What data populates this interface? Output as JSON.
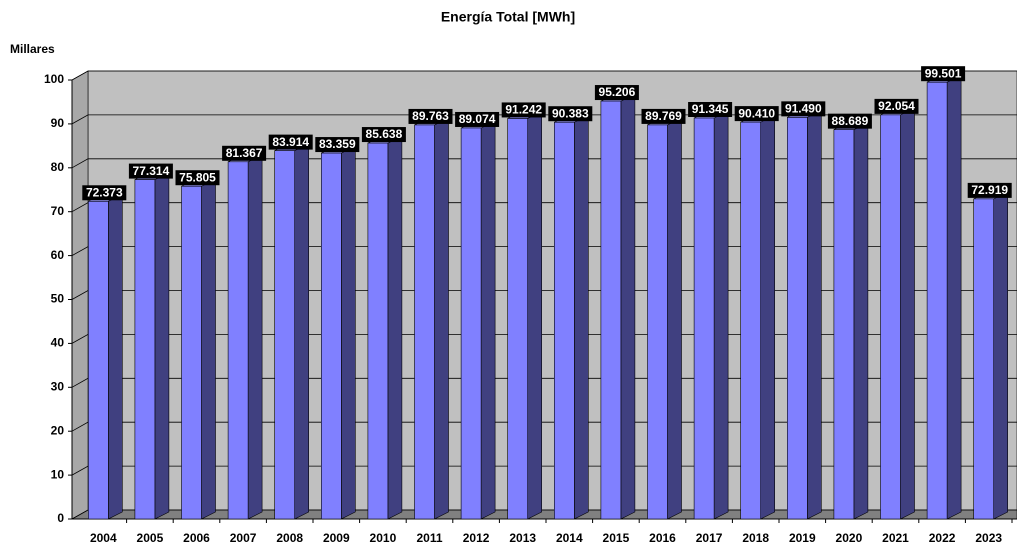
{
  "chart_data": {
    "type": "bar3d",
    "title": "Energía Total [MWh]",
    "y_unit_label": "Millares",
    "categories": [
      "2004",
      "2005",
      "2006",
      "2007",
      "2008",
      "2009",
      "2010",
      "2011",
      "2012",
      "2013",
      "2014",
      "2015",
      "2016",
      "2017",
      "2018",
      "2019",
      "2020",
      "2021",
      "2022",
      "2023"
    ],
    "values": [
      72.373,
      77.314,
      75.805,
      81.367,
      83.914,
      83.359,
      85.638,
      89.763,
      89.074,
      91.242,
      90.383,
      95.206,
      89.769,
      91.345,
      90.41,
      91.49,
      88.689,
      92.054,
      99.501,
      72.919
    ],
    "value_labels": [
      "72.373",
      "77.314",
      "75.805",
      "81.367",
      "83.914",
      "83.359",
      "85.638",
      "89.763",
      "89.074",
      "91.242",
      "90.383",
      "95.206",
      "89.769",
      "91.345",
      "90.410",
      "91.490",
      "88.689",
      "92.054",
      "99.501",
      "72.919"
    ],
    "color": "#8080ff",
    "side_color": "#404080",
    "top_color": "#a0a0ff",
    "ylim": [
      0,
      100
    ],
    "yticks": [
      0,
      10,
      20,
      30,
      40,
      50,
      60,
      70,
      80,
      90,
      100
    ],
    "grid": true
  }
}
